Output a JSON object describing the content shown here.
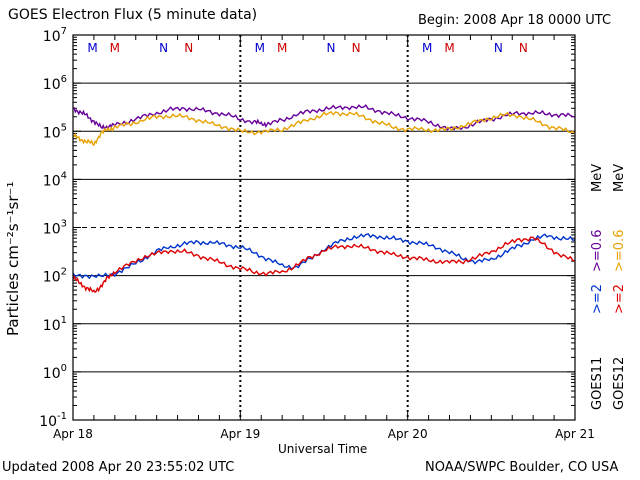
{
  "header": {
    "title": "GOES Electron Flux (5 minute data)",
    "begin": "Begin: 2008 Apr 18 0000 UTC"
  },
  "footer": {
    "updated": "Updated 2008 Apr 20 23:55:02 UTC",
    "credit": "NOAA/SWPC Boulder, CO USA"
  },
  "chart_data": {
    "type": "line",
    "title": "GOES Electron Flux (5 minute data)",
    "xlabel": "Universal Time",
    "ylabel": "Particles cm⁻²s⁻¹sr⁻¹",
    "yscale": "log",
    "ylim": [
      0.1,
      10000000
    ],
    "xlim": [
      0,
      72
    ],
    "x_units": "hours since 2008 Apr 18 00:00 UTC",
    "x_ticks": [
      {
        "x": 0,
        "label": "Apr 18"
      },
      {
        "x": 24,
        "label": "Apr 19"
      },
      {
        "x": 48,
        "label": "Apr 20"
      },
      {
        "x": 72,
        "label": "Apr 21"
      }
    ],
    "y_ticks": [
      {
        "exp": "7"
      },
      {
        "exp": "6"
      },
      {
        "exp": "5"
      },
      {
        "exp": "4"
      },
      {
        "exp": "3"
      },
      {
        "exp": "2"
      },
      {
        "exp": "1"
      },
      {
        "exp": "0"
      },
      {
        "exp": "-1"
      }
    ],
    "threshold_line": 1000,
    "grid": true,
    "markers": [
      {
        "x": 2.8,
        "label": "M",
        "color": "#0000cc"
      },
      {
        "x": 6.0,
        "label": "M",
        "color": "#cc0000"
      },
      {
        "x": 13.0,
        "label": "N",
        "color": "#0000cc"
      },
      {
        "x": 16.6,
        "label": "N",
        "color": "#cc0000"
      },
      {
        "x": 26.8,
        "label": "M",
        "color": "#0000cc"
      },
      {
        "x": 30.0,
        "label": "M",
        "color": "#cc0000"
      },
      {
        "x": 37.0,
        "label": "N",
        "color": "#0000cc"
      },
      {
        "x": 40.6,
        "label": "N",
        "color": "#cc0000"
      },
      {
        "x": 50.8,
        "label": "M",
        "color": "#0000cc"
      },
      {
        "x": 54.0,
        "label": "M",
        "color": "#cc0000"
      },
      {
        "x": 61.0,
        "label": "N",
        "color": "#0000cc"
      },
      {
        "x": 64.6,
        "label": "N",
        "color": "#cc0000"
      }
    ],
    "series": [
      {
        "name": ">=0.6 MeV",
        "satellite": "GOES11",
        "color": "#660099",
        "x": [
          0,
          1,
          2,
          3,
          4,
          5,
          6,
          8,
          10,
          12,
          14,
          16,
          18,
          20,
          22,
          24,
          26,
          27,
          28,
          30,
          32,
          34,
          36,
          38,
          40,
          42,
          44,
          46,
          48,
          50,
          52,
          54,
          56,
          58,
          60,
          62,
          64,
          66,
          68,
          70,
          72
        ],
        "y": [
          300000,
          250000,
          210000,
          160000,
          120000,
          125000,
          135000,
          160000,
          200000,
          240000,
          280000,
          300000,
          280000,
          250000,
          220000,
          180000,
          155000,
          145000,
          140000,
          170000,
          220000,
          260000,
          290000,
          310000,
          320000,
          310000,
          260000,
          220000,
          190000,
          170000,
          140000,
          110000,
          120000,
          150000,
          180000,
          210000,
          240000,
          240000,
          230000,
          220000,
          200000
        ]
      },
      {
        "name": ">=2 MeV",
        "satellite": "GOES11",
        "color": "#0033cc",
        "x": [
          0,
          2,
          4,
          6,
          8,
          10,
          12,
          14,
          16,
          18,
          20,
          22,
          24,
          26,
          28,
          30,
          32,
          34,
          36,
          38,
          40,
          42,
          44,
          46,
          48,
          50,
          52,
          54,
          56,
          58,
          60,
          62,
          64,
          66,
          68,
          70,
          72
        ],
        "y": [
          100,
          100,
          95,
          110,
          150,
          220,
          320,
          400,
          450,
          500,
          480,
          440,
          390,
          300,
          220,
          160,
          150,
          220,
          350,
          500,
          620,
          680,
          650,
          580,
          520,
          460,
          400,
          300,
          230,
          190,
          220,
          300,
          420,
          560,
          680,
          600,
          550
        ]
      },
      {
        "name": ">=0.6 MeV",
        "satellite": "GOES12",
        "color": "#e6a100",
        "x": [
          0,
          1,
          2,
          3,
          4,
          5,
          6,
          8,
          10,
          12,
          14,
          16,
          18,
          20,
          22,
          24,
          26,
          28,
          30,
          32,
          34,
          36,
          38,
          40,
          42,
          44,
          46,
          48,
          50,
          52,
          54,
          56,
          58,
          60,
          62,
          64,
          66,
          68,
          70,
          72
        ],
        "y": [
          80000,
          70000,
          60000,
          55000,
          90000,
          110000,
          120000,
          140000,
          170000,
          200000,
          210000,
          200000,
          170000,
          140000,
          120000,
          100000,
          95000,
          100000,
          110000,
          140000,
          180000,
          220000,
          240000,
          230000,
          190000,
          150000,
          120000,
          110000,
          110000,
          105000,
          110000,
          130000,
          160000,
          190000,
          220000,
          210000,
          170000,
          130000,
          110000,
          90000
        ]
      },
      {
        "name": ">=2 MeV",
        "satellite": "GOES12",
        "color": "#dd0000",
        "x": [
          0,
          1,
          2,
          3,
          4,
          5,
          6,
          8,
          10,
          12,
          14,
          16,
          18,
          20,
          22,
          24,
          26,
          28,
          30,
          32,
          34,
          36,
          38,
          40,
          42,
          44,
          46,
          48,
          50,
          52,
          54,
          56,
          58,
          60,
          62,
          64,
          66,
          68,
          70,
          72
        ],
        "y": [
          90,
          70,
          55,
          45,
          60,
          90,
          120,
          170,
          240,
          290,
          330,
          310,
          260,
          210,
          170,
          140,
          120,
          110,
          120,
          160,
          240,
          330,
          400,
          420,
          380,
          320,
          270,
          240,
          220,
          200,
          190,
          200,
          240,
          320,
          430,
          570,
          600,
          400,
          260,
          200
        ]
      }
    ]
  },
  "right_labels": {
    "goes11": "GOES11",
    "goes12": "GOES12",
    "g11_2": ">=2",
    "g11_06": ">=0.6",
    "g12_2": ">=2",
    "g12_06": ">=0.6",
    "mev": "MeV"
  },
  "colors": {
    "blue": "#0033cc",
    "purple": "#660099",
    "red": "#dd0000",
    "orange": "#e6a100"
  }
}
